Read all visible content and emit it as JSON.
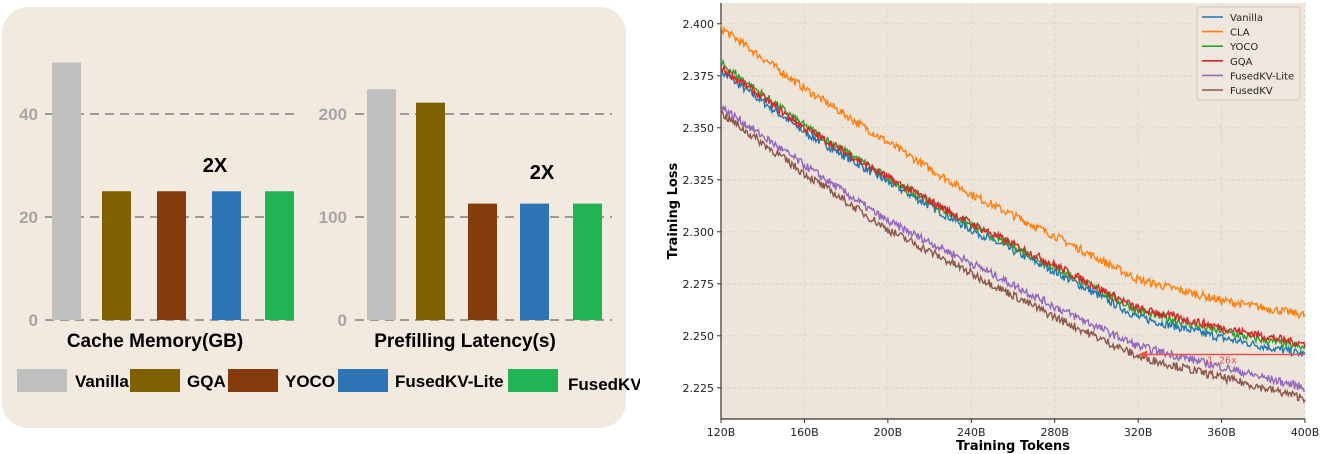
{
  "chart_data": [
    {
      "type": "bar",
      "xlabel": "Cache Memory(GB)",
      "categories": [
        "Vanilla",
        "GQA",
        "YOCO",
        "FusedKV-Lite",
        "FusedKV"
      ],
      "values": [
        50,
        25,
        25,
        25,
        25
      ],
      "ylim": [
        0,
        52
      ],
      "yticks": [
        "0",
        "20",
        "40"
      ],
      "annotation": "2X",
      "grid": "dashed horizontal"
    },
    {
      "type": "bar",
      "xlabel": "Prefilling Latency(s)",
      "categories": [
        "Vanilla",
        "GQA",
        "YOCO",
        "FusedKV-Lite",
        "FusedKV"
      ],
      "values": [
        224,
        211,
        113,
        113,
        113
      ],
      "ylim": [
        0,
        260
      ],
      "yticks": [
        "100",
        "200"
      ],
      "annotation": "2X",
      "grid": "dashed horizontal"
    },
    {
      "type": "line",
      "xlabel": "Training Tokens",
      "ylabel": "Training Loss",
      "x": [
        "120B",
        "160B",
        "200B",
        "240B",
        "280B",
        "320B",
        "360B",
        "400B"
      ],
      "xlim": [
        120,
        400
      ],
      "ylim": [
        2.21,
        2.41
      ],
      "yticks": [
        "2.225",
        "2.250",
        "2.275",
        "2.300",
        "2.325",
        "2.350",
        "2.375",
        "2.400"
      ],
      "legend": "top-right",
      "grid": true,
      "series": [
        {
          "name": "Vanilla",
          "color": "#1f77b4",
          "values": [
            2.377,
            2.348,
            2.324,
            2.301,
            2.281,
            2.259,
            2.249,
            2.241
          ]
        },
        {
          "name": "CLA",
          "color": "#ff7f0e",
          "values": [
            2.398,
            2.369,
            2.343,
            2.318,
            2.298,
            2.277,
            2.267,
            2.26
          ]
        },
        {
          "name": "YOCO",
          "color": "#2ca02c",
          "values": [
            2.381,
            2.351,
            2.326,
            2.303,
            2.283,
            2.262,
            2.252,
            2.244
          ]
        },
        {
          "name": "GQA",
          "color": "#d62728",
          "values": [
            2.379,
            2.35,
            2.326,
            2.304,
            2.284,
            2.263,
            2.254,
            2.246
          ]
        },
        {
          "name": "FusedKV-Lite",
          "color": "#9467bd",
          "values": [
            2.36,
            2.332,
            2.305,
            2.285,
            2.264,
            2.245,
            2.235,
            2.225
          ]
        },
        {
          "name": "FusedKV",
          "color": "#8c564b",
          "values": [
            2.357,
            2.328,
            2.301,
            2.28,
            2.259,
            2.24,
            2.23,
            2.22
          ]
        }
      ],
      "annotation": {
        "text": "1.26x",
        "from": [
          "400B",
          2.241
        ],
        "to": [
          "320B",
          2.241
        ],
        "color": "#e8514f"
      }
    }
  ],
  "bar_legend": [
    {
      "label": "Vanilla",
      "color": "#bfbfbf"
    },
    {
      "label": "GQA",
      "color": "#7f6000"
    },
    {
      "label": "YOCO",
      "color": "#843c0c"
    },
    {
      "label": "FusedKV-Lite",
      "color": "#2e75b6"
    },
    {
      "label": "FusedKV",
      "color": "#21b354"
    }
  ]
}
